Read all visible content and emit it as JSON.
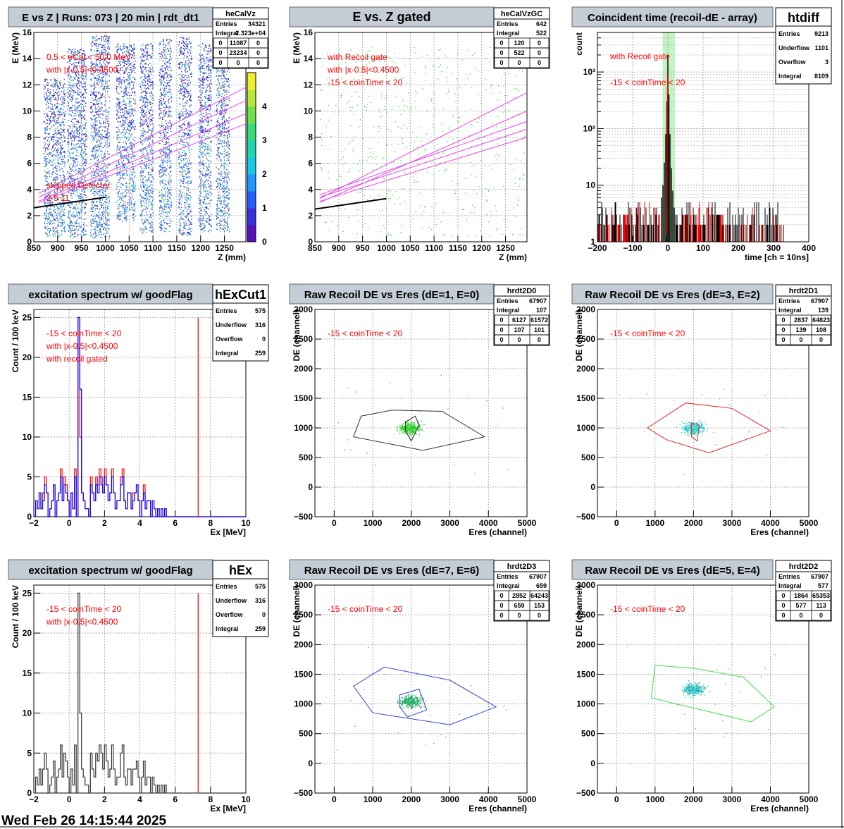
{
  "footer": {
    "timestamp": "Wed Feb 26 14:15:44 2025"
  },
  "chart_data": [
    {
      "type": "heatmap",
      "title": "E vs Z | Runs: 073 | 20 min | rdt_dt1",
      "xlabel": "Z (mm)",
      "ylabel": "E (MeV)",
      "xlim": [
        850,
        1295
      ],
      "ylim": [
        0,
        16
      ],
      "xticks": [
        "850",
        "900",
        "950",
        "1000",
        "1050",
        "1100",
        "1150",
        "1200",
        "1250"
      ],
      "yticks": [
        "0",
        "2",
        "4",
        "6",
        "8",
        "10",
        "12",
        "14",
        "16"
      ],
      "grid": true,
      "colorbar": {
        "min": 0,
        "max": 5,
        "ticks": [
          "0",
          "1",
          "2",
          "3",
          "4"
        ]
      },
      "detector_columns": [
        {
          "z": [
            870,
            915
          ],
          "e": [
            0.4,
            12.5
          ]
        },
        {
          "z": [
            920,
            960
          ],
          "e": [
            0.4,
            14.8
          ]
        },
        {
          "z": [
            968,
            1008
          ],
          "e": [
            0.3,
            15.8
          ]
        },
        {
          "z": [
            1022,
            1062
          ],
          "e": [
            1.6,
            15.2
          ]
        },
        {
          "z": [
            1072,
            1100
          ],
          "e": [
            0.7,
            15.2
          ]
        },
        {
          "z": [
            1112,
            1138
          ],
          "e": [
            0.7,
            15.5
          ]
        },
        {
          "z": [
            1153,
            1180
          ],
          "e": [
            0.5,
            15.7
          ]
        },
        {
          "z": [
            1195,
            1222
          ],
          "e": [
            0.8,
            15.2
          ]
        },
        {
          "z": [
            1232,
            1260
          ],
          "e": [
            0.8,
            15.2
          ]
        }
      ],
      "stats": {
        "name": "heCalVz",
        "rows": [
          [
            "Entries",
            "34321"
          ],
          [
            "Integral",
            "2.323e+04"
          ]
        ],
        "grid": [
          [
            "0",
            "11087",
            "0"
          ],
          [
            "0",
            "23234",
            "0"
          ],
          [
            "0",
            "0",
            "0"
          ]
        ]
      },
      "annotations": [
        "0.5 < eCal < 50.0 MeV",
        "with |x-0.5|<0.4500",
        "skipped Detector:",
        "2      5      11"
      ]
    },
    {
      "type": "scatter",
      "title": "E vs. Z gated",
      "xlabel": "Z (mm)",
      "ylabel": "E (MeV)",
      "xlim": [
        850,
        1295
      ],
      "ylim": [
        0,
        16
      ],
      "xticks": [
        "850",
        "900",
        "950",
        "1000",
        "1050",
        "1100",
        "1150",
        "1200",
        "1250"
      ],
      "yticks": [
        "0",
        "2",
        "4",
        "6",
        "8",
        "10",
        "12",
        "14",
        "16"
      ],
      "grid": true,
      "stats": {
        "name": "heCalVzGC",
        "rows": [
          [
            "Entries",
            "642"
          ],
          [
            "Integral",
            "522"
          ]
        ],
        "grid": [
          [
            "0",
            "120",
            "0"
          ],
          [
            "0",
            "522",
            "0"
          ],
          [
            "0",
            "0",
            "0"
          ]
        ]
      },
      "annotations": [
        "with Recoil gate",
        "with |x-0.5|<0.4500",
        "-15 < coinTime < 20"
      ]
    },
    {
      "type": "bar",
      "title": "Coincident time (recoil-dE - array)",
      "xlabel": "time [ch = 10ns]",
      "ylabel": "count",
      "xlim": [
        -200,
        400
      ],
      "ylim_log": [
        1,
        5000
      ],
      "log_y": true,
      "xticks": [
        "−200",
        "−100",
        "0",
        "100",
        "200",
        "300",
        "400"
      ],
      "yticks": [
        "1",
        "10",
        "10²",
        "10³"
      ],
      "gate": [
        -15,
        20
      ],
      "peak": {
        "x": [
          -18,
          -14,
          -10,
          -6,
          -3,
          0,
          3,
          6,
          10,
          14,
          18
        ],
        "y": [
          6,
          10,
          25,
          80,
          300,
          2000,
          400,
          80,
          20,
          8,
          4
        ]
      },
      "stats": {
        "name": "htdiff",
        "rows": [
          [
            "Entries",
            "9213"
          ],
          [
            "Underflow",
            "1101"
          ],
          [
            "Overflow",
            "3"
          ],
          [
            "Integral",
            "8109"
          ]
        ]
      },
      "annotations": [
        "with Recoil gate",
        "-15 < coinTime < 20"
      ]
    },
    {
      "type": "bar",
      "title": "excitation spectrum w/ goodFlag",
      "xlabel": "Ex [MeV]",
      "ylabel": "Count / 100 keV",
      "xlim": [
        -2,
        10
      ],
      "ylim": [
        0,
        26
      ],
      "xticks": [
        "−2",
        "0",
        "2",
        "4",
        "6",
        "8",
        "10"
      ],
      "yticks": [
        "0",
        "5",
        "10",
        "15",
        "20",
        "25"
      ],
      "vline": 7.3,
      "series": [
        {
          "color": "#ff0000",
          "values": [
            0,
            2,
            1,
            3,
            1,
            3,
            5,
            3,
            0,
            1,
            2,
            4,
            0,
            2,
            3,
            6,
            2,
            5,
            4,
            2,
            0,
            3,
            1,
            6,
            0,
            25,
            10,
            3,
            2,
            1,
            1,
            0,
            5,
            3,
            2,
            5,
            4,
            6,
            5,
            3,
            6,
            4,
            2,
            3,
            6,
            3,
            1,
            2,
            2,
            5,
            6,
            2,
            1,
            3,
            3,
            1,
            3,
            3,
            4,
            2,
            0,
            2,
            4,
            1,
            2,
            2,
            0,
            2,
            1,
            0,
            1,
            0,
            1,
            0,
            1
          ]
        },
        {
          "color": "#0000ff",
          "values": [
            0,
            2,
            1,
            3,
            1,
            2,
            4,
            3,
            0,
            1,
            2,
            4,
            0,
            2,
            3,
            5,
            2,
            4,
            3,
            2,
            0,
            3,
            1,
            5,
            0,
            25,
            16,
            3,
            2,
            1,
            1,
            0,
            4,
            3,
            2,
            4,
            3,
            5,
            4,
            3,
            5,
            4,
            2,
            3,
            5,
            3,
            1,
            2,
            2,
            4,
            5,
            2,
            1,
            3,
            3,
            1,
            2,
            3,
            4,
            2,
            0,
            2,
            3,
            1,
            2,
            2,
            0,
            2,
            1,
            0,
            1,
            0,
            1,
            0,
            1
          ]
        }
      ],
      "stats": {
        "name": "hExCut1",
        "rows": [
          [
            "Entries",
            "575"
          ],
          [
            "Underflow",
            "316"
          ],
          [
            "Overflow",
            "0"
          ],
          [
            "Integral",
            "259"
          ]
        ]
      },
      "annotations": [
        "-15 < coinTime < 20",
        "with |x-0.5|<0.4500",
        "with recoil gated"
      ]
    },
    {
      "type": "scatter",
      "title": "Raw Recoil DE vs Eres (dE=1, E=0)",
      "xlabel": "Eres (channel)",
      "ylabel": "DE (channel)",
      "xlim": [
        -500,
        5000
      ],
      "ylim": [
        -500,
        3000
      ],
      "xticks": [
        "0",
        "1000",
        "2000",
        "3000",
        "4000",
        "5000"
      ],
      "yticks": [
        "−500",
        "0",
        "500",
        "1000",
        "1500",
        "2000",
        "2500",
        "3000"
      ],
      "blob": {
        "x": 1950,
        "y": 1000,
        "color": "#22cc22"
      },
      "cuts": [
        {
          "color": "#333333",
          "pts": [
            [
              500,
              850
            ],
            [
              700,
              1200
            ],
            [
              1500,
              1300
            ],
            [
              2800,
              1280
            ],
            [
              3900,
              850
            ],
            [
              2300,
              620
            ]
          ]
        },
        {
          "color": "#222222",
          "pts": [
            [
              1850,
              1100
            ],
            [
              2100,
              1200
            ],
            [
              2200,
              1050
            ],
            [
              2000,
              780
            ],
            [
              1850,
              950
            ]
          ]
        }
      ],
      "stats": {
        "name": "hrdt2D0",
        "rows": [
          [
            "Entries",
            "67907"
          ],
          [
            "Integral",
            "107"
          ]
        ],
        "grid": [
          [
            "0",
            "6127",
            "61572"
          ],
          [
            "0",
            "107",
            "101"
          ],
          [
            "0",
            "0",
            "0"
          ]
        ]
      },
      "annotations": [
        "-15 < coinTime < 20"
      ]
    },
    {
      "type": "scatter",
      "title": "Raw Recoil DE vs Eres (dE=3, E=2)",
      "xlabel": "Eres (channel)",
      "ylabel": "DE (channel)",
      "xlim": [
        -500,
        5000
      ],
      "ylim": [
        -500,
        3000
      ],
      "xticks": [
        "0",
        "1000",
        "2000",
        "3000",
        "4000",
        "5000"
      ],
      "yticks": [
        "−500",
        "0",
        "500",
        "1000",
        "1500",
        "2000",
        "2500",
        "3000"
      ],
      "blob": {
        "x": 2000,
        "y": 1000,
        "color": "#22cccc"
      },
      "cuts": [
        {
          "color": "#ee2222",
          "pts": [
            [
              800,
              1000
            ],
            [
              1800,
              1420
            ],
            [
              3000,
              1330
            ],
            [
              4000,
              950
            ],
            [
              2400,
              580
            ],
            [
              1300,
              800
            ]
          ]
        },
        {
          "color": "#ee2222",
          "pts": [
            [
              1950,
              1080
            ],
            [
              2150,
              1050
            ],
            [
              2100,
              780
            ],
            [
              1950,
              850
            ]
          ]
        }
      ],
      "stats": {
        "name": "hrdt2D1",
        "rows": [
          [
            "Entries",
            "67907"
          ],
          [
            "Integral",
            "139"
          ]
        ],
        "grid": [
          [
            "0",
            "2837",
            "64823"
          ],
          [
            "0",
            "139",
            "108"
          ],
          [
            "0",
            "0",
            "0"
          ]
        ]
      },
      "annotations": [
        "-15 < coinTime < 20"
      ]
    },
    {
      "type": "bar",
      "title": "excitation spectrum w/ goodFlag",
      "xlabel": "Ex [MeV]",
      "ylabel": "Count / 100 keV",
      "xlim": [
        -2,
        10
      ],
      "ylim": [
        0,
        26
      ],
      "xticks": [
        "−2",
        "0",
        "2",
        "4",
        "6",
        "8",
        "10"
      ],
      "yticks": [
        "0",
        "5",
        "10",
        "15",
        "20",
        "25"
      ],
      "vline": 7.3,
      "series": [
        {
          "color": "#333333",
          "values": [
            0,
            2,
            1,
            3,
            1,
            3,
            5,
            3,
            0,
            1,
            2,
            4,
            0,
            2,
            3,
            6,
            2,
            5,
            4,
            2,
            0,
            3,
            1,
            6,
            0,
            25,
            10,
            3,
            2,
            1,
            1,
            0,
            5,
            3,
            2,
            5,
            4,
            6,
            5,
            3,
            6,
            4,
            2,
            3,
            6,
            3,
            1,
            2,
            2,
            5,
            6,
            2,
            1,
            3,
            3,
            1,
            3,
            3,
            4,
            2,
            0,
            2,
            4,
            1,
            2,
            2,
            0,
            2,
            1,
            0,
            1,
            0,
            1,
            0,
            1
          ]
        }
      ],
      "stats": {
        "name": "hEx",
        "rows": [
          [
            "Entries",
            "575"
          ],
          [
            "Underflow",
            "316"
          ],
          [
            "Overflow",
            "0"
          ],
          [
            "Integral",
            "259"
          ]
        ]
      },
      "annotations": [
        "-15 < coinTime < 20",
        "with |x-0.5|<0.4500"
      ]
    },
    {
      "type": "scatter",
      "title": "Raw Recoil DE vs Eres (dE=7, E=6)",
      "xlabel": "Eres (channel)",
      "ylabel": "DE (channel)",
      "xlim": [
        -500,
        5000
      ],
      "ylim": [
        -500,
        3000
      ],
      "xticks": [
        "0",
        "1000",
        "2000",
        "3000",
        "4000",
        "5000"
      ],
      "yticks": [
        "−500",
        "0",
        "500",
        "1000",
        "1500",
        "2000",
        "2500",
        "3000"
      ],
      "blob": {
        "x": 2000,
        "y": 1050,
        "color": "#22aa66"
      },
      "cuts": [
        {
          "color": "#3344dd",
          "pts": [
            [
              500,
              1300
            ],
            [
              1300,
              1620
            ],
            [
              3000,
              1400
            ],
            [
              4200,
              950
            ],
            [
              3000,
              650
            ],
            [
              1000,
              850
            ]
          ]
        },
        {
          "color": "#3344dd",
          "pts": [
            [
              1700,
              1150
            ],
            [
              2200,
              1250
            ],
            [
              2400,
              900
            ],
            [
              1900,
              780
            ],
            [
              1700,
              950
            ]
          ]
        }
      ],
      "stats": {
        "name": "hrdt2D3",
        "rows": [
          [
            "Entries",
            "67907"
          ],
          [
            "Integral",
            "659"
          ]
        ],
        "grid": [
          [
            "0",
            "2852",
            "64243"
          ],
          [
            "0",
            "659",
            "153"
          ],
          [
            "0",
            "0",
            "0"
          ]
        ]
      },
      "annotations": [
        "-15 < coinTime < 20"
      ]
    },
    {
      "type": "scatter",
      "title": "Raw Recoil DE vs Eres (dE=5, E=4)",
      "xlabel": "Eres (channel)",
      "ylabel": "DE (channel)",
      "xlim": [
        -500,
        5000
      ],
      "ylim": [
        -500,
        3000
      ],
      "xticks": [
        "0",
        "1000",
        "2000",
        "3000",
        "4000",
        "5000"
      ],
      "yticks": [
        "−500",
        "0",
        "500",
        "1000",
        "1500",
        "2000",
        "2500",
        "3000"
      ],
      "blob": {
        "x": 2000,
        "y": 1250,
        "color": "#22bbbb"
      },
      "cuts": [
        {
          "color": "#44dd44",
          "pts": [
            [
              1000,
              1650
            ],
            [
              2000,
              1600
            ],
            [
              3300,
              1450
            ],
            [
              4100,
              950
            ],
            [
              3500,
              700
            ],
            [
              900,
              1100
            ]
          ]
        }
      ],
      "stats": {
        "name": "hrdt2D2",
        "rows": [
          [
            "Entries",
            "67907"
          ],
          [
            "Integral",
            "577"
          ]
        ],
        "grid": [
          [
            "0",
            "1864",
            "65353"
          ],
          [
            "0",
            "577",
            "113"
          ],
          [
            "0",
            "0",
            "0"
          ]
        ]
      },
      "annotations": [
        "-15 < coinTime < 20"
      ]
    }
  ]
}
